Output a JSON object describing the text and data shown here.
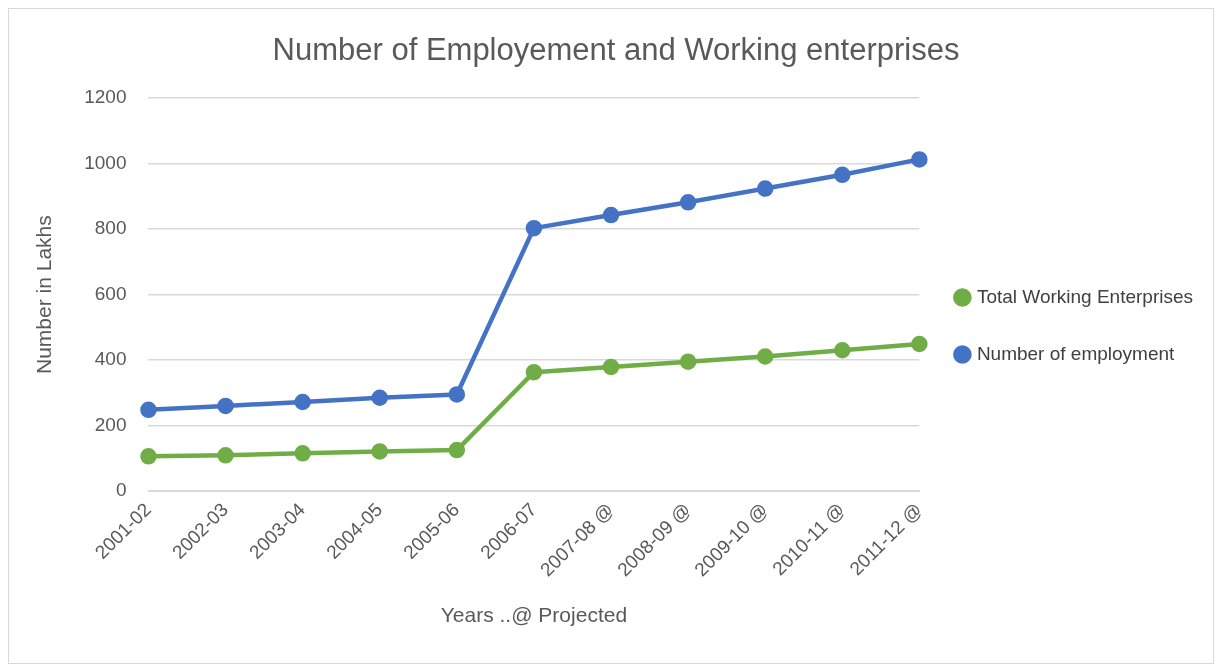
{
  "chart_data": {
    "type": "line",
    "title": "Number of Employement and Working enterprises",
    "xlabel": "Years ..@ Projected",
    "ylabel": "Number in Lakhs",
    "categories": [
      "2001-02",
      "2002-03",
      "2003-04",
      "2004-05",
      "2005-06",
      "2006-07",
      "2007-08 @",
      "2008-09 @",
      "2009-10 @",
      "2010-11 @",
      "2011-12 @"
    ],
    "series": [
      {
        "name": "Total Working Enterprises",
        "color": "#70ad47",
        "values": [
          106,
          109,
          115,
          121,
          125,
          363,
          379,
          395,
          411,
          430,
          449
        ]
      },
      {
        "name": "Number of employment",
        "color": "#4472c4",
        "values": [
          248,
          260,
          272,
          285,
          295,
          803,
          843,
          882,
          924,
          966,
          1013
        ]
      }
    ],
    "ylim": [
      0,
      1200
    ],
    "yticks": [
      0,
      200,
      400,
      600,
      800,
      1000,
      1200
    ],
    "grid": "y",
    "legend": "right",
    "marker": "circle",
    "line_style": "solid"
  }
}
